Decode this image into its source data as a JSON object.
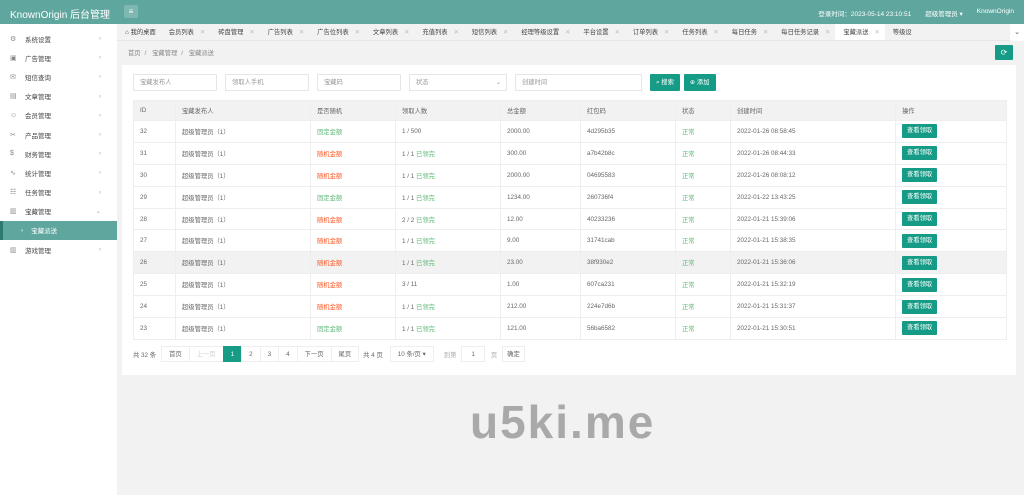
{
  "header": {
    "title": "KnownOrigin 后台管理",
    "login_time": "登录时间：2023-05-14 23:10:51",
    "user": "超级管理员 ▾",
    "site": "KnownOrigin"
  },
  "sidebar": {
    "items": [
      {
        "label": "系统设置",
        "icon": "⚙"
      },
      {
        "label": "广告管理",
        "icon": "▣"
      },
      {
        "label": "短信查询",
        "icon": "✉"
      },
      {
        "label": "文章管理",
        "icon": "▤"
      },
      {
        "label": "会员管理",
        "icon": "☺"
      },
      {
        "label": "产品管理",
        "icon": "✂"
      },
      {
        "label": "财务管理",
        "icon": "$"
      },
      {
        "label": "统计管理",
        "icon": "∿"
      },
      {
        "label": "任务管理",
        "icon": "☷"
      },
      {
        "label": "宝藏管理",
        "icon": "▥"
      }
    ],
    "sub_active": "宝藏派送",
    "last": {
      "label": "游戏管理",
      "icon": "▥"
    }
  },
  "tabs": [
    "我的桌面",
    "会员列表",
    "砖盘管理",
    "广告列表",
    "广告位列表",
    "文章列表",
    "充值列表",
    "短信列表",
    "经理等级设置",
    "平台设置",
    "订单列表",
    "任务列表",
    "每日任务",
    "每日任务记录",
    "宝藏派送",
    "等级设"
  ],
  "breadcrumb": [
    "首页",
    "宝藏管理",
    "宝藏派送"
  ],
  "filters": {
    "publisher": "宝藏发布人",
    "phone": "领取人手机",
    "code": "宝藏码",
    "status": "状态",
    "time": "创建时间",
    "search": "搜索",
    "add": "添加"
  },
  "table": {
    "headers": [
      "ID",
      "宝藏发布人",
      "是否随机",
      "领取人数",
      "总金额",
      "红包码",
      "状态",
      "创建时间",
      "操作"
    ],
    "rows": [
      {
        "id": "32",
        "pub": "超级管理员（1）",
        "rand": "固定金额",
        "rc": "green",
        "count": "1 / 500",
        "done": "",
        "total": "2000.00",
        "code": "4d295b35",
        "status": "正常",
        "time": "2022-01-26 08:58:45",
        "action": "查看领取"
      },
      {
        "id": "31",
        "pub": "超级管理员（1）",
        "rand": "随机金额",
        "rc": "red",
        "count": "1 / 1",
        "done": "已领完",
        "total": "300.00",
        "code": "a7b42b8c",
        "status": "正常",
        "time": "2022-01-26 08:44:33",
        "action": "查看领取"
      },
      {
        "id": "30",
        "pub": "超级管理员（1）",
        "rand": "随机金额",
        "rc": "red",
        "count": "1 / 1",
        "done": "已领完",
        "total": "2000.00",
        "code": "04695583",
        "status": "正常",
        "time": "2022-01-26 08:08:12",
        "action": "查看领取"
      },
      {
        "id": "29",
        "pub": "超级管理员（1）",
        "rand": "固定金额",
        "rc": "green",
        "count": "1 / 1",
        "done": "已领完",
        "total": "1234.00",
        "code": "260736f4",
        "status": "正常",
        "time": "2022-01-22 13:43:25",
        "action": "查看领取"
      },
      {
        "id": "28",
        "pub": "超级管理员（1）",
        "rand": "随机金额",
        "rc": "red",
        "count": "2 / 2",
        "done": "已领完",
        "total": "12.00",
        "code": "40233236",
        "status": "正常",
        "time": "2022-01-21 15:39:06",
        "action": "查看领取"
      },
      {
        "id": "27",
        "pub": "超级管理员（1）",
        "rand": "随机金额",
        "rc": "red",
        "count": "1 / 1",
        "done": "已领完",
        "total": "9.00",
        "code": "31741cab",
        "status": "正常",
        "time": "2022-01-21 15:38:35",
        "action": "查看领取"
      },
      {
        "id": "26",
        "pub": "超级管理员（1）",
        "rand": "随机金额",
        "rc": "red",
        "count": "1 / 1",
        "done": "已领完",
        "total": "23.00",
        "code": "38f930e2",
        "status": "正常",
        "time": "2022-01-21 15:36:06",
        "action": "查看领取"
      },
      {
        "id": "25",
        "pub": "超级管理员（1）",
        "rand": "随机金额",
        "rc": "red",
        "count": "3 / 11",
        "done": "",
        "total": "1.00",
        "code": "607ca231",
        "status": "正常",
        "time": "2022-01-21 15:32:19",
        "action": "查看领取"
      },
      {
        "id": "24",
        "pub": "超级管理员（1）",
        "rand": "随机金额",
        "rc": "red",
        "count": "1 / 1",
        "done": "已领完",
        "total": "212.00",
        "code": "224e7d6b",
        "status": "正常",
        "time": "2022-01-21 15:31:37",
        "action": "查看领取"
      },
      {
        "id": "23",
        "pub": "超级管理员（1）",
        "rand": "固定金额",
        "rc": "green",
        "count": "1 / 1",
        "done": "已领完",
        "total": "121.00",
        "code": "56ba6582",
        "status": "正常",
        "time": "2022-01-21 15:30:51",
        "action": "查看领取"
      }
    ]
  },
  "pagination": {
    "total": "共 32 条",
    "first": "首页",
    "prev": "上一页",
    "pages": [
      "1",
      "2",
      "3",
      "4"
    ],
    "current": "1",
    "next": "下一页",
    "last": "尾页",
    "page_count": "共 4 页",
    "per_page": "10 条/页 ▾",
    "goto": "到第",
    "goto_value": "1",
    "page_unit": "页",
    "confirm": "确定"
  },
  "watermark": "u5ki.me",
  "colors": {
    "header": "#5fa69e",
    "primary": "#169b86",
    "green": "#5fb878",
    "red": "#ff5722"
  }
}
